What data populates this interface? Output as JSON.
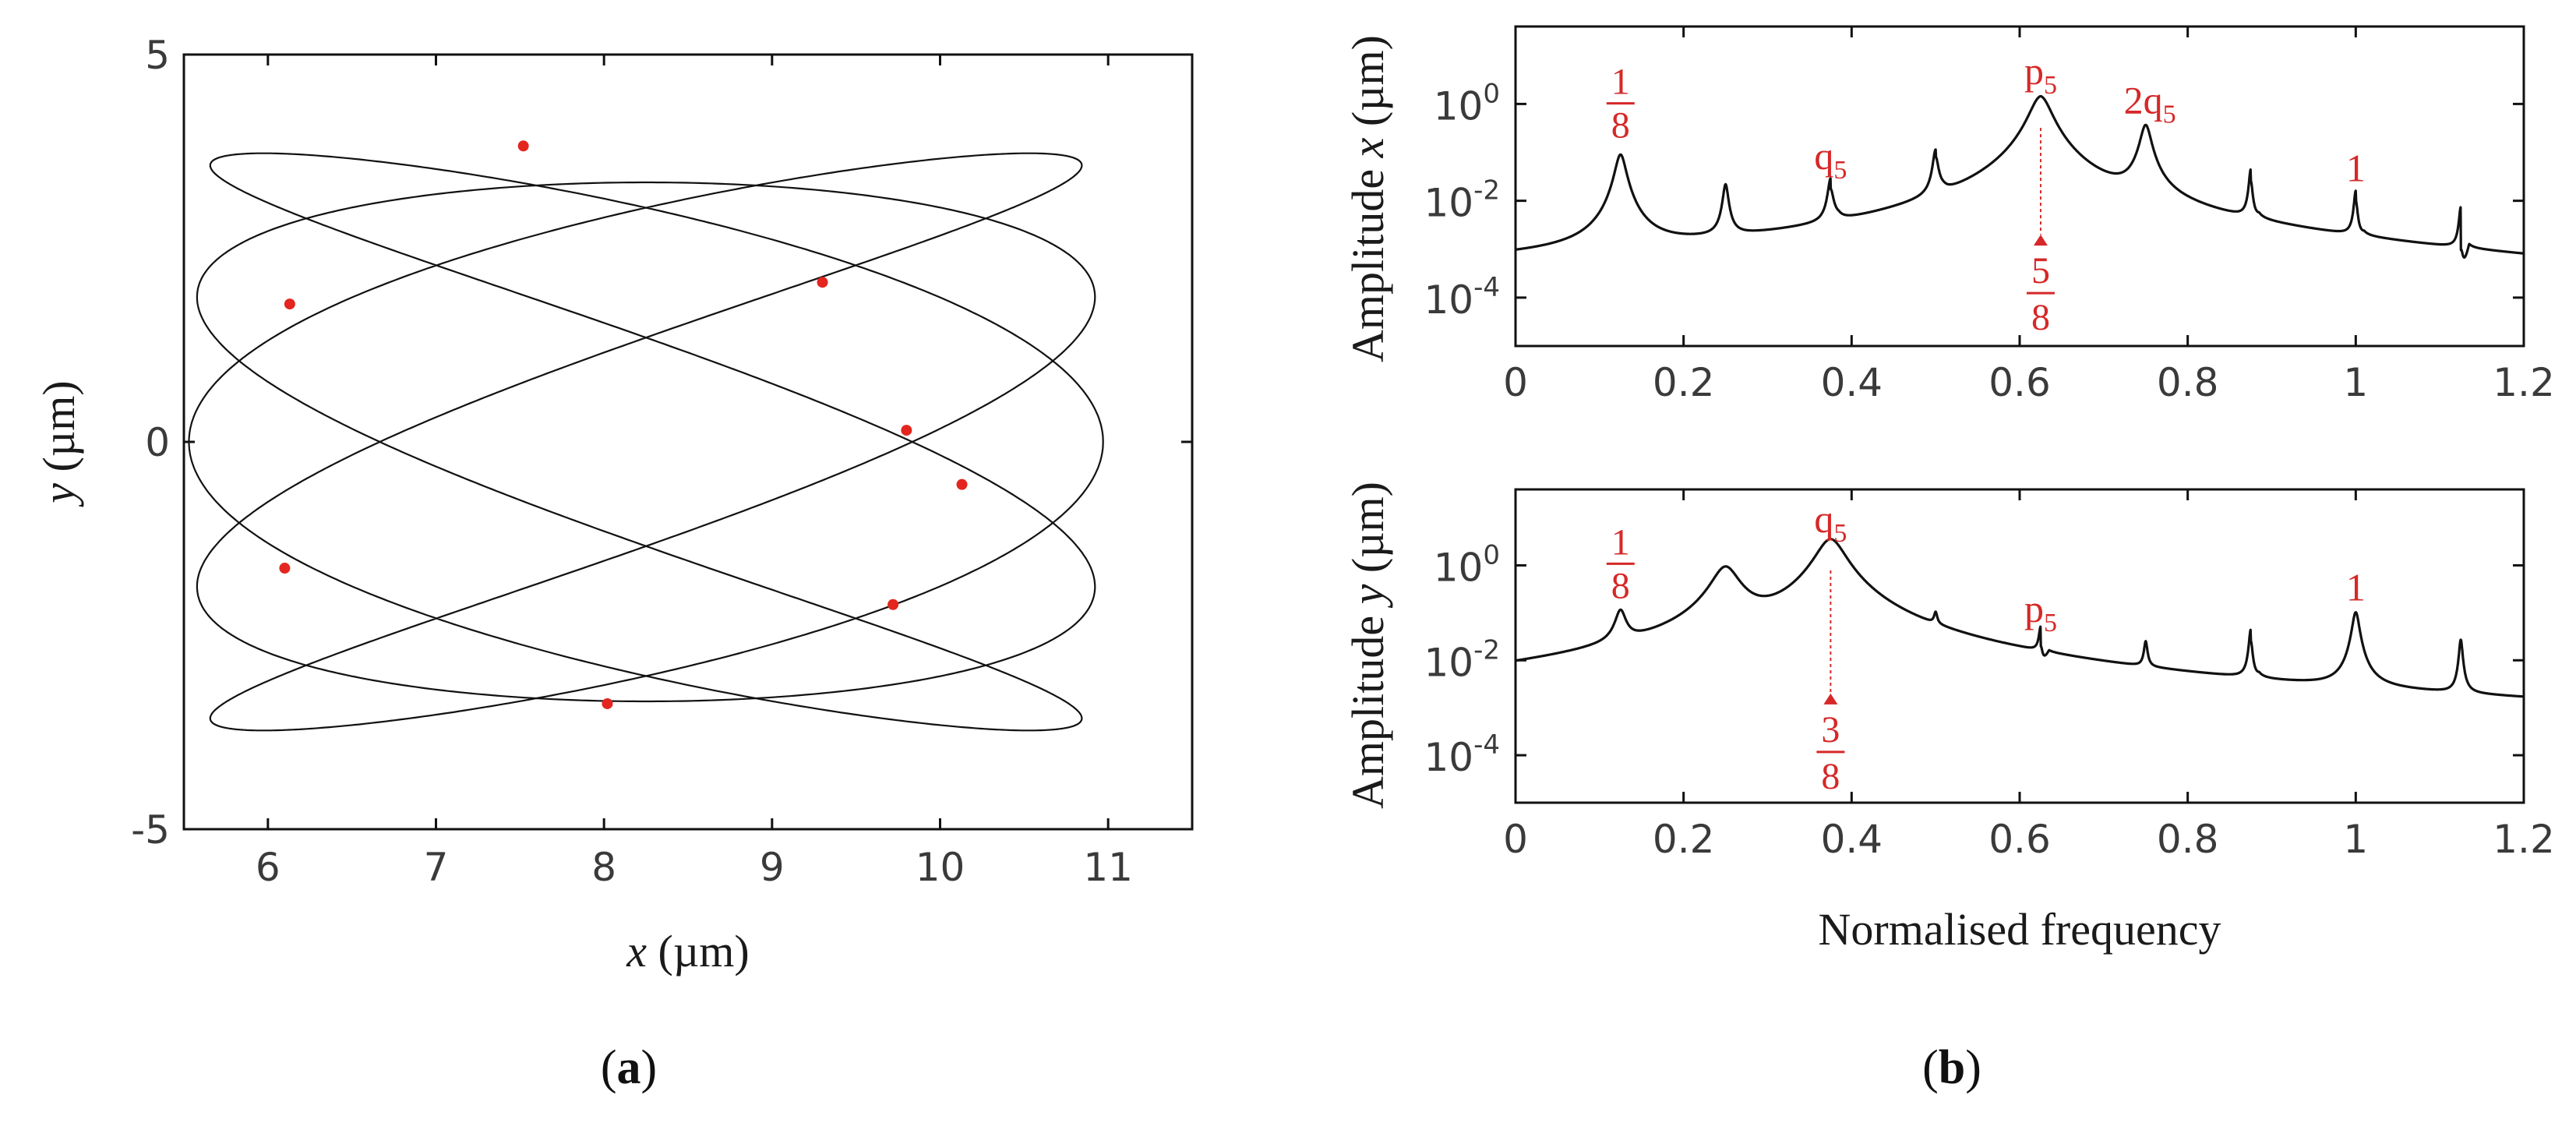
{
  "chart_data": [
    {
      "id": "a",
      "type": "line",
      "panel_label_open": "(",
      "panel_label_letter": "a",
      "panel_label_close": ")",
      "xlabel_sym": "x",
      "xlabel_unit": " (µm)",
      "ylabel_sym": "y",
      "ylabel_unit": " (µm)",
      "xlim": [
        5.5,
        11.5
      ],
      "ylim": [
        -5,
        5
      ],
      "xticks": [
        6,
        7,
        8,
        9,
        10,
        11
      ],
      "yticks": [
        -5,
        0,
        5
      ],
      "curve": {
        "cx": 8.25,
        "ax": 2.65,
        "bx": 0.07,
        "ay": 3.6,
        "by": 0.25,
        "fx": 5,
        "fy": 3
      },
      "markers": [
        {
          "x": 7.52,
          "y": 3.82
        },
        {
          "x": 6.13,
          "y": 1.78
        },
        {
          "x": 9.3,
          "y": 2.06
        },
        {
          "x": 9.8,
          "y": 0.15
        },
        {
          "x": 10.13,
          "y": -0.55
        },
        {
          "x": 6.1,
          "y": -1.63
        },
        {
          "x": 9.72,
          "y": -2.1
        },
        {
          "x": 8.02,
          "y": -3.38
        }
      ],
      "marker_color": "#e3261f",
      "line_color": "#111111"
    },
    {
      "id": "bx",
      "type": "line",
      "ylabel_pre": "Amplitude ",
      "ylabel_sym": "x",
      "ylabel_unit": " (µm)",
      "xlim": [
        0,
        1.2
      ],
      "ylim_log10": [
        -5,
        1.6
      ],
      "xticks": [
        "0",
        "0.2",
        "0.4",
        "0.6",
        "0.8",
        "1",
        "1.2"
      ],
      "ytick_base": "10",
      "ytick_exps": [
        "0",
        "-2",
        "-4"
      ],
      "baseline": [
        [
          0,
          -3.65
        ],
        [
          0.12,
          -3.62
        ],
        [
          0.125,
          -3.6
        ],
        [
          0.25,
          -3.55
        ],
        [
          0.375,
          -3.45
        ],
        [
          0.5,
          -3.0
        ],
        [
          0.62,
          -2.3
        ],
        [
          0.625,
          -1.5
        ],
        [
          0.63,
          -2.3
        ],
        [
          0.75,
          -2.9
        ],
        [
          0.875,
          -3.25
        ],
        [
          1.0,
          -3.5
        ],
        [
          1.125,
          -3.75
        ],
        [
          1.2,
          -3.9
        ]
      ],
      "peaks": [
        {
          "f": 0.125,
          "a": -1.05,
          "w": 0.006
        },
        {
          "f": 0.25,
          "a": -1.7,
          "w": 0.003
        },
        {
          "f": 0.375,
          "a": -1.6,
          "w": 0.003,
          "dip": -0.45
        },
        {
          "f": 0.5,
          "a": -1.0,
          "w": 0.003,
          "dip": -0.3
        },
        {
          "f": 0.625,
          "a": 0.15,
          "w": 0.012
        },
        {
          "f": 0.75,
          "a": -0.45,
          "w": 0.006
        },
        {
          "f": 0.875,
          "a": -1.4,
          "w": 0.002,
          "dip": -0.4
        },
        {
          "f": 1.0,
          "a": -1.85,
          "w": 0.002,
          "dip": -0.35
        },
        {
          "f": 1.125,
          "a": -2.2,
          "w": 0.002,
          "dip": -1.5
        }
      ],
      "annotations": [
        {
          "type": "frac",
          "num": "1",
          "den": "8",
          "f": 0.125,
          "pos": "above"
        },
        {
          "type": "sub",
          "base": "q",
          "sub": "5",
          "f": 0.375,
          "pos": "above"
        },
        {
          "type": "sub",
          "base": "p",
          "sub": "5",
          "f": 0.625,
          "pos": "above"
        },
        {
          "type": "sub",
          "base": "2q",
          "sub": "5",
          "f": 0.755,
          "pos": "above"
        },
        {
          "type": "plain",
          "text": "1",
          "f": 1.0,
          "pos": "above"
        },
        {
          "type": "frac",
          "num": "5",
          "den": "8",
          "f": 0.625,
          "pos": "below"
        }
      ],
      "marker_f": 0.625
    },
    {
      "id": "by",
      "type": "line",
      "ylabel_pre": "Amplitude ",
      "ylabel_sym": "y",
      "ylabel_unit": " (µm)",
      "xlabel": "Normalised frequency",
      "panel_label_open": "(",
      "panel_label_letter": "b",
      "panel_label_close": ")",
      "xlim": [
        0,
        1.2
      ],
      "ylim_log10": [
        -5,
        1.6
      ],
      "xticks": [
        "0",
        "0.2",
        "0.4",
        "0.6",
        "0.8",
        "1",
        "1.2"
      ],
      "ytick_base": "10",
      "ytick_exps": [
        "0",
        "-2",
        "-4"
      ],
      "baseline": [
        [
          0,
          -5.0
        ],
        [
          0.02,
          -4.6
        ],
        [
          0.06,
          -4.2
        ],
        [
          0.12,
          -3.9
        ],
        [
          0.125,
          -3.8
        ],
        [
          0.2,
          -3.5
        ],
        [
          0.25,
          -3.0
        ],
        [
          0.3,
          -3.05
        ],
        [
          0.375,
          -2.8
        ],
        [
          0.45,
          -3.3
        ],
        [
          0.5,
          -3.4
        ],
        [
          0.6,
          -3.5
        ],
        [
          0.625,
          -4.2
        ],
        [
          0.63,
          -3.6
        ],
        [
          0.75,
          -3.7
        ],
        [
          0.875,
          -3.85
        ],
        [
          0.88,
          -4.2
        ],
        [
          1.0,
          -4.05
        ],
        [
          1.125,
          -4.0
        ],
        [
          1.2,
          -4.0
        ]
      ],
      "peaks": [
        {
          "f": 0.125,
          "a": -1.05,
          "w": 0.006
        },
        {
          "f": 0.25,
          "a": -0.05,
          "w": 0.015
        },
        {
          "f": 0.375,
          "a": 0.55,
          "w": 0.016
        },
        {
          "f": 0.5,
          "a": -1.35,
          "w": 0.002
        },
        {
          "f": 0.625,
          "a": -1.45,
          "w": 0.002,
          "dip": -0.7
        },
        {
          "f": 0.75,
          "a": -1.75,
          "w": 0.002
        },
        {
          "f": 0.875,
          "a": -1.4,
          "w": 0.002,
          "dip": -0.4
        },
        {
          "f": 1.0,
          "a": -1.0,
          "w": 0.004
        },
        {
          "f": 1.125,
          "a": -1.6,
          "w": 0.002
        }
      ],
      "annotations": [
        {
          "type": "frac",
          "num": "1",
          "den": "8",
          "f": 0.125,
          "pos": "above"
        },
        {
          "type": "sub",
          "base": "q",
          "sub": "5",
          "f": 0.375,
          "pos": "above-high"
        },
        {
          "type": "sub",
          "base": "p",
          "sub": "5",
          "f": 0.625,
          "pos": "above"
        },
        {
          "type": "plain",
          "text": "1",
          "f": 1.0,
          "pos": "above"
        },
        {
          "type": "frac",
          "num": "3",
          "den": "8",
          "f": 0.375,
          "pos": "below"
        }
      ],
      "marker_f": 0.375
    }
  ]
}
